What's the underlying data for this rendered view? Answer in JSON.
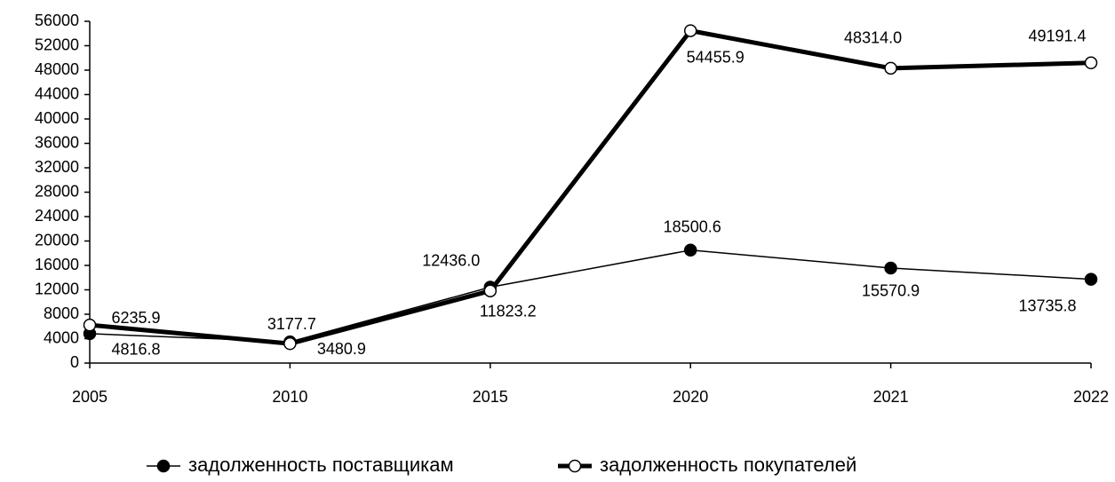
{
  "chart_data": {
    "type": "line",
    "categories": [
      "2005",
      "2010",
      "2015",
      "2020",
      "2021",
      "2022"
    ],
    "series": [
      {
        "name": "задолженность поставщикам",
        "color": "#000000",
        "marker": "filled",
        "values": [
          4816.8,
          3480.9,
          12436.0,
          18500.6,
          15570.9,
          13735.8
        ],
        "value_labels": [
          "4816.8",
          "3480.9",
          "12436.0",
          "18500.6",
          "15570.9",
          "13735.8"
        ]
      },
      {
        "name": "задолженность покупателей",
        "color": "#000000",
        "marker": "open",
        "values": [
          6235.9,
          3177.7,
          11823.2,
          54455.9,
          48314.0,
          49191.4
        ],
        "value_labels": [
          "6235.9",
          "3177.7",
          "11823.2",
          "54455.9",
          "48314.0",
          "49191.4"
        ]
      }
    ],
    "ylim": [
      0,
      56000
    ],
    "yticks": [
      0,
      4000,
      8000,
      12000,
      16000,
      20000,
      24000,
      28000,
      32000,
      36000,
      40000,
      44000,
      48000,
      52000,
      56000
    ],
    "grid": false,
    "legend": "bottom"
  }
}
